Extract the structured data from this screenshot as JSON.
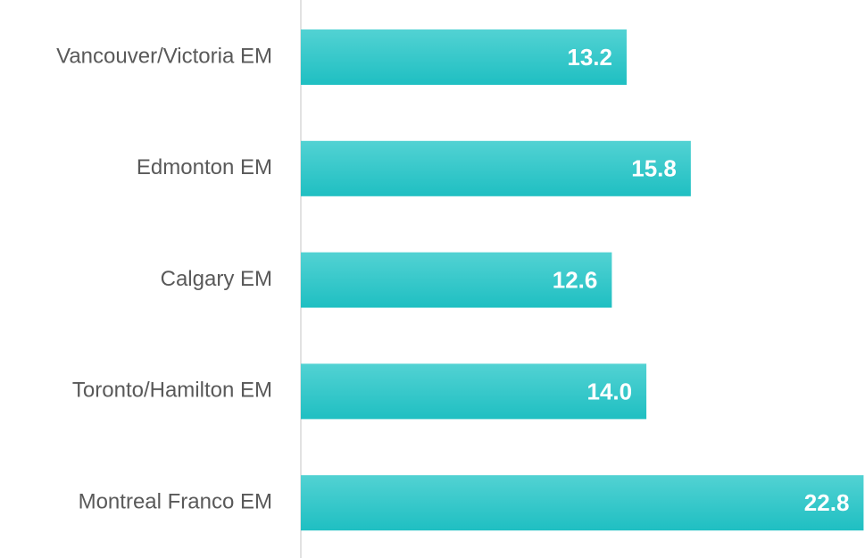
{
  "chart_data": {
    "type": "bar",
    "orientation": "horizontal",
    "categories": [
      "Vancouver/Victoria EM",
      "Edmonton EM",
      "Calgary EM",
      "Toronto/Hamilton EM",
      "Montreal Franco EM"
    ],
    "values": [
      13.2,
      15.8,
      12.6,
      14.0,
      22.8
    ],
    "value_labels": [
      "13.2",
      "15.8",
      "12.6",
      "14.0",
      "22.8"
    ],
    "color": "#26c3c6"
  }
}
